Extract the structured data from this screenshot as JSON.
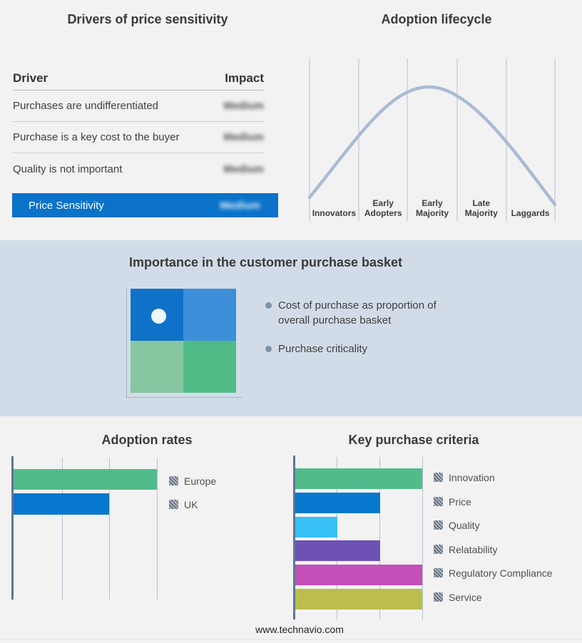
{
  "drivers_table": {
    "title": "Drivers of price sensitivity",
    "headers": {
      "driver": "Driver",
      "impact": "Impact"
    },
    "rows": [
      {
        "driver": "Purchases are undifferentiated",
        "impact": "Medium",
        "impact_redacted": true
      },
      {
        "driver": "Purchase is a key cost to the buyer",
        "impact": "Medium",
        "impact_redacted": true
      },
      {
        "driver": "Quality is not important",
        "impact": "Medium",
        "impact_redacted": true
      }
    ],
    "highlight": {
      "driver": "Price Sensitivity",
      "impact": "Medium",
      "impact_redacted": true
    },
    "highlight_color": "#0a72c9"
  },
  "basket": {
    "title": "Importance in the customer purchase basket",
    "bullets": [
      "Cost of purchase as proportion of overall purchase basket",
      "Purchase criticality"
    ],
    "quadrant_colors": [
      "#0f72c8",
      "#3d8ed9",
      "#85c7a0",
      "#50bb86"
    ],
    "band_color": "#d2dce8"
  },
  "footer": {
    "url": "www.technavio.com"
  },
  "chart_data": [
    {
      "type": "line",
      "title": "Adoption lifecycle",
      "categories": [
        "Innovators",
        "Early Adopters",
        "Early Majority",
        "Late Majority",
        "Laggards"
      ],
      "description": "Bell-shaped adoption curve over five stages, peaking between Early Majority and Late Majority",
      "x_gridlines": [
        0,
        1,
        2,
        3,
        4,
        5
      ],
      "y_at_gridlines": [
        0.14,
        0.53,
        0.78,
        0.73,
        0.44,
        0.1
      ],
      "peak": {
        "x": 2.4,
        "y": 0.83
      },
      "curve_color": "#a9bbd3",
      "grid": "vertical-only",
      "legend": "none"
    },
    {
      "type": "bar",
      "title": "Adoption rates",
      "orientation": "horizontal",
      "categories": [
        "Europe",
        "UK"
      ],
      "values": [
        3,
        2
      ],
      "colors": [
        "#52bb8b",
        "#0778cd"
      ],
      "xlim": [
        0,
        3
      ],
      "grid": "vertical-only",
      "legend_position": "right",
      "legend_swatch": "hatched-gray"
    },
    {
      "type": "bar",
      "title": "Key purchase criteria",
      "orientation": "horizontal",
      "categories": [
        "Innovation",
        "Price",
        "Quality",
        "Relatability",
        "Regulatory Compliance",
        "Service"
      ],
      "values": [
        3,
        2,
        1,
        2,
        3,
        3
      ],
      "colors": [
        "#52bb8b",
        "#0778cd",
        "#38c1f5",
        "#6e51b5",
        "#c250b8",
        "#bdbd4e"
      ],
      "xlim": [
        0,
        3
      ],
      "grid": "vertical-only",
      "legend_position": "right",
      "legend_swatch": "hatched-gray"
    }
  ]
}
